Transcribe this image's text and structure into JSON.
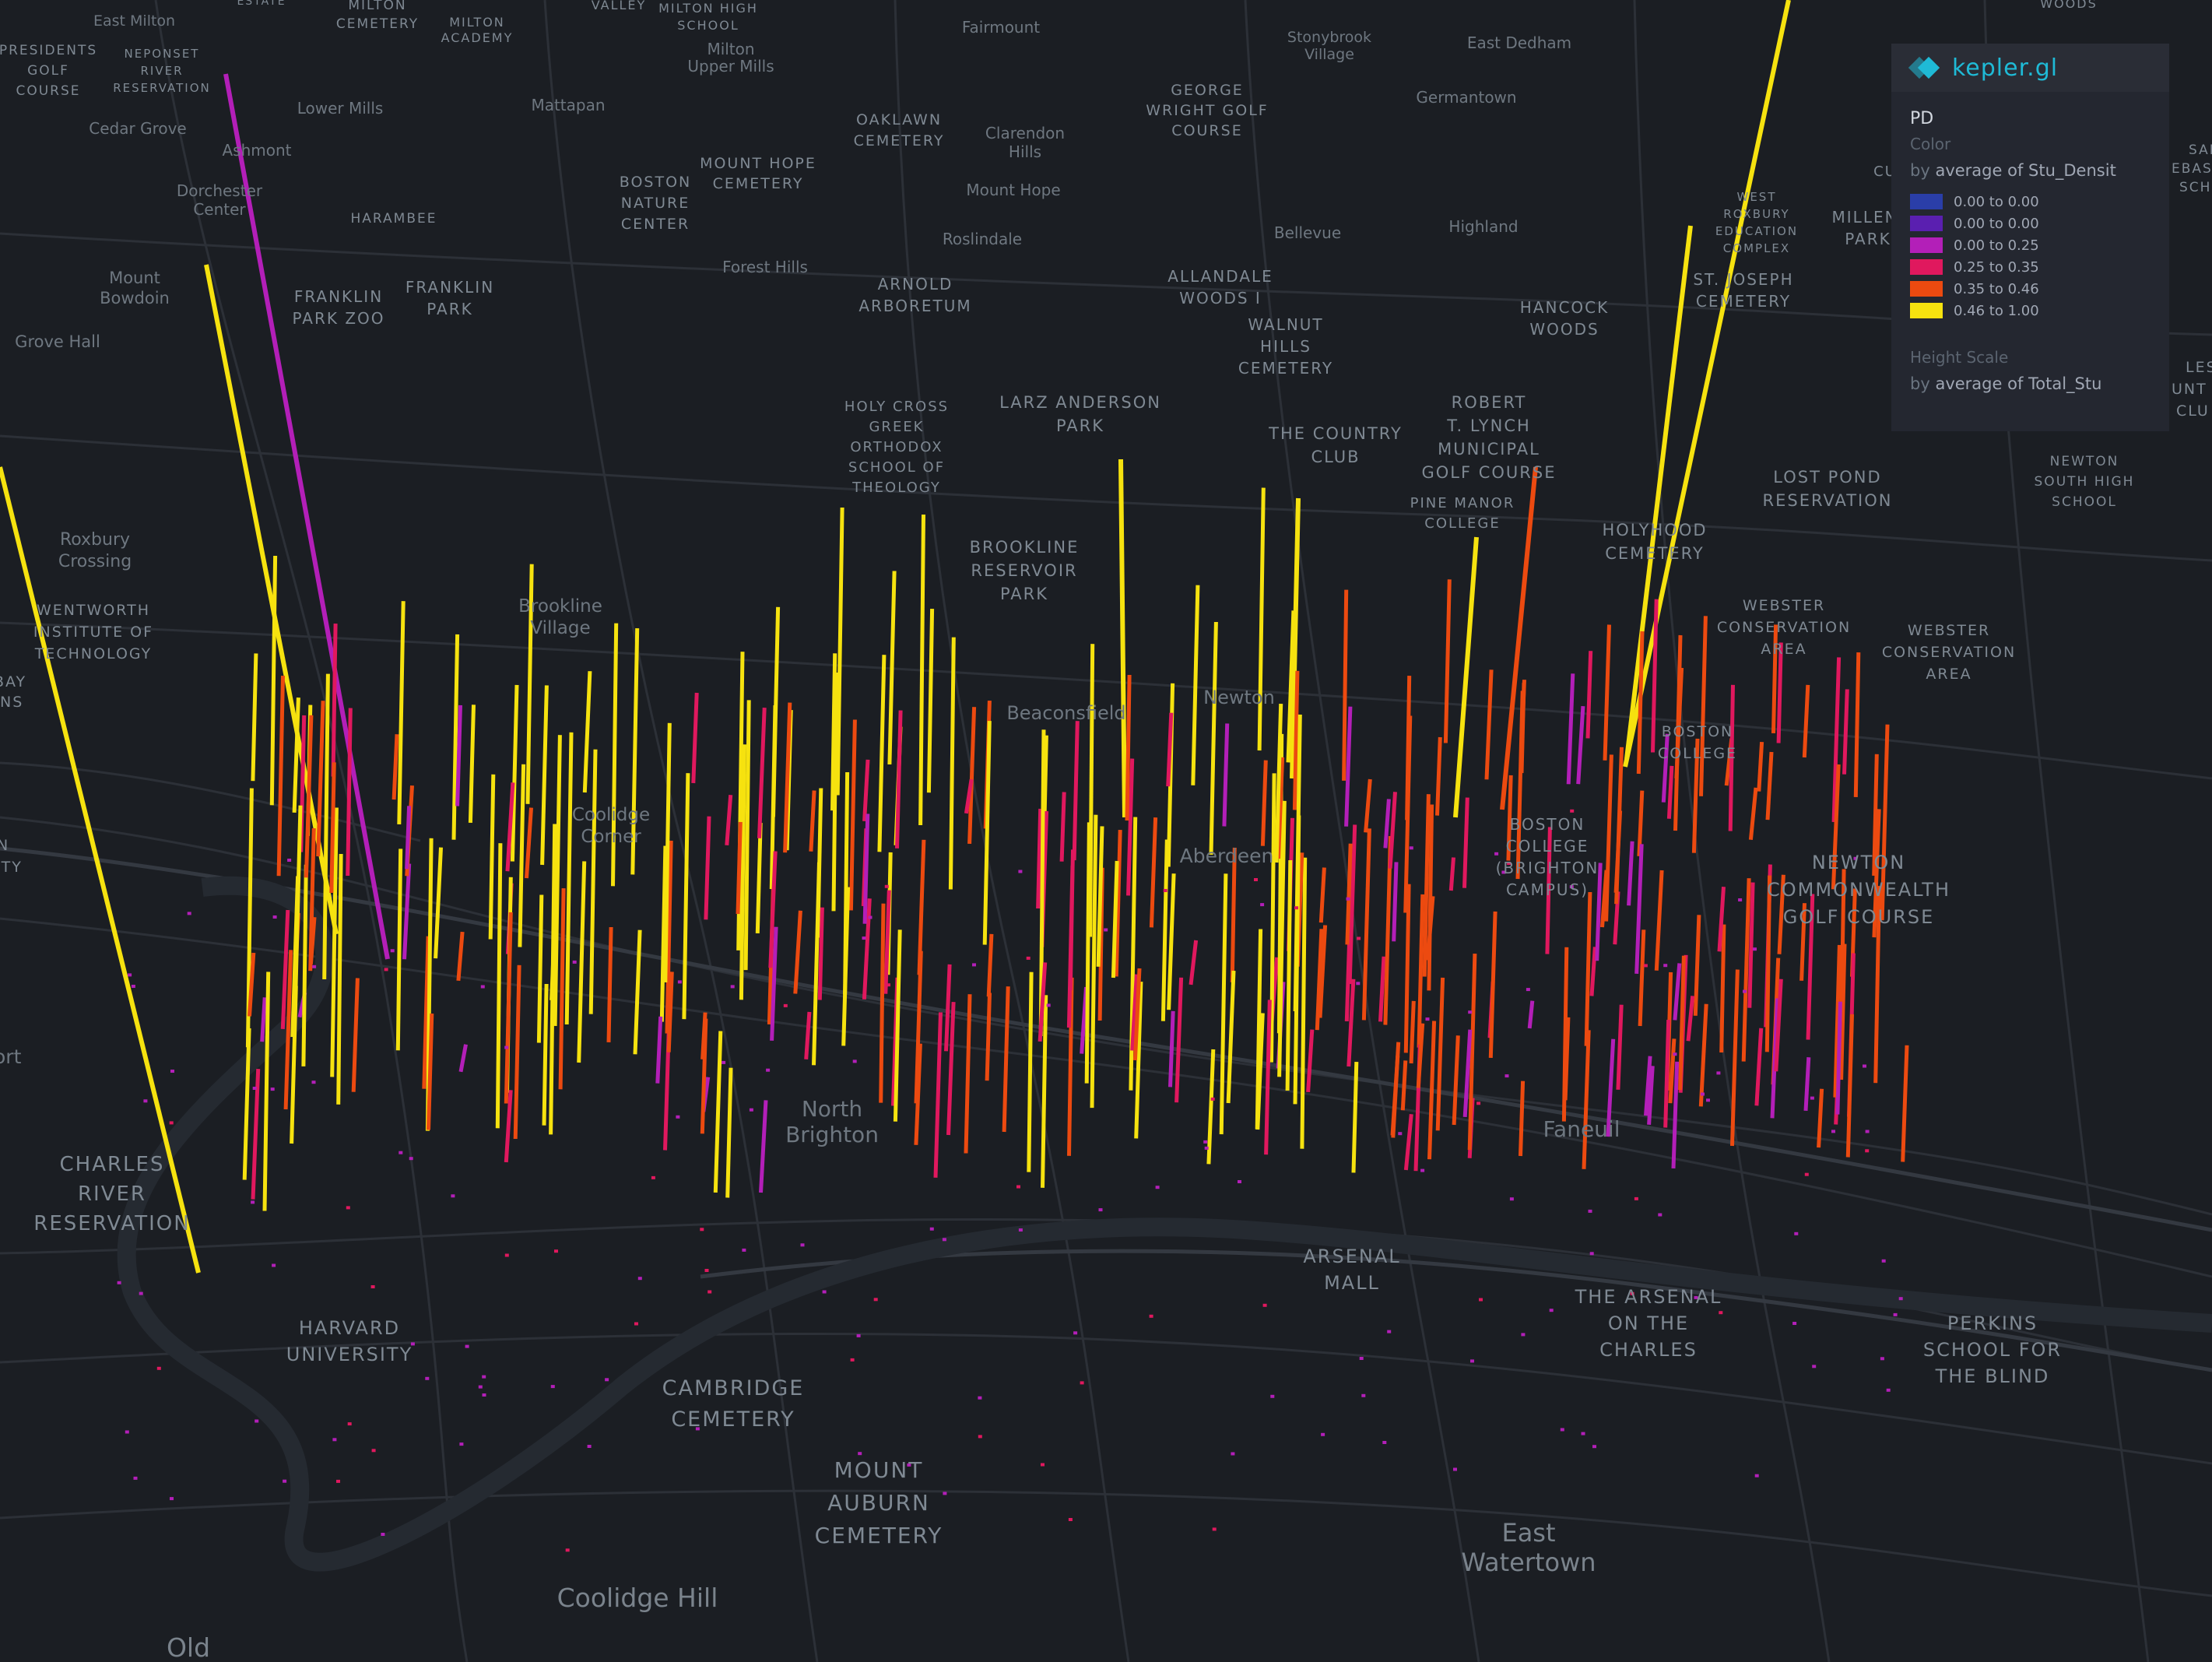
{
  "legend": {
    "brand": "kepler.gl",
    "layer_name": "PD",
    "color_title": "Color",
    "color_by_prefix": "by",
    "color_field": "average of Stu_Densit",
    "color_ramp": [
      {
        "label": "0.00 to 0.00",
        "color": "#2a3ea8"
      },
      {
        "label": "0.00 to 0.00",
        "color": "#5a1fb0"
      },
      {
        "label": "0.00 to 0.25",
        "color": "#b31fb8"
      },
      {
        "label": "0.25 to 0.35",
        "color": "#e0185e"
      },
      {
        "label": "0.35 to 0.46",
        "color": "#ec4a10"
      },
      {
        "label": "0.46 to 1.00",
        "color": "#f6e20f"
      }
    ],
    "height_title": "Height Scale",
    "height_by_prefix": "by",
    "height_field": "average of Total_Stu"
  },
  "map_labels": {
    "east_milton": "East Milton",
    "milton_cemetery_1": "MILTON",
    "milton_cemetery_2": "CEMETERY",
    "milton_academy_1": "MILTON",
    "milton_academy_2": "ACADEMY",
    "valley": "VALLEY",
    "milton_high_1": "MILTON HIGH",
    "milton_high_2": "SCHOOL",
    "milton_upper_1": "Milton",
    "milton_upper_2": "Upper Mills",
    "fairmount": "Fairmount",
    "stonybrook_1": "Stonybrook",
    "stonybrook_2": "Village",
    "east_dedham": "East Dedham",
    "germantown": "Germantown",
    "woods": "WOODS",
    "presidents_1": "PRESIDENTS",
    "presidents_2": "GOLF",
    "presidents_3": "COURSE",
    "neponset_1": "NEPONSET",
    "neponset_2": "RIVER",
    "neponset_3": "RESERVATION",
    "lower_mills": "Lower Mills",
    "mattapan": "Mattapan",
    "cedar_grove": "Cedar Grove",
    "ashmont": "Ashmont",
    "dorchester_1": "Dorchester",
    "dorchester_2": "Center",
    "harambee": "HARAMBEE",
    "oaklawn_1": "OAKLAWN",
    "oaklawn_2": "CEMETERY",
    "clarendon_1": "Clarendon",
    "clarendon_2": "Hills",
    "george_1": "GEORGE",
    "george_2": "WRIGHT GOLF",
    "george_3": "COURSE",
    "mount_hope_cem_1": "MOUNT HOPE",
    "mount_hope_cem_2": "CEMETERY",
    "mount_hope": "Mount Hope",
    "boston_nature_1": "BOSTON",
    "boston_nature_2": "NATURE",
    "boston_nature_3": "CENTER",
    "roslindale": "Roslindale",
    "bellevue": "Bellevue",
    "highland": "Highland",
    "forest_hills": "Forest Hills",
    "mount_bowdoin_1": "Mount",
    "mount_bowdoin_2": "Bowdoin",
    "franklin_zoo_1": "FRANKLIN",
    "franklin_zoo_2": "PARK ZOO",
    "franklin_park_1": "FRANKLIN",
    "franklin_park_2": "PARK",
    "arnold_1": "ARNOLD",
    "arnold_2": "ARBORETUM",
    "allandale_1": "ALLANDALE",
    "allandale_2": "WOODS I",
    "walnut_1": "WALNUT",
    "walnut_2": "HILLS",
    "walnut_3": "CEMETERY",
    "grove_hall": "Grove Hall",
    "hancock_1": "HANCOCK",
    "hancock_2": "WOODS",
    "west_roxbury_1": "WEST",
    "west_roxbury_2": "ROXBURY",
    "west_roxbury_3": "EDUCATION",
    "west_roxbury_4": "COMPLEX",
    "millennium_1": "MILLENI",
    "millennium_2": "PARK",
    "st_joseph_1": "ST. JOSEPH",
    "st_joseph_2": "CEMETERY",
    "holy_cross_1": "HOLY CROSS",
    "holy_cross_2": "GREEK",
    "holy_cross_3": "ORTHODOX",
    "holy_cross_4": "SCHOOL OF",
    "holy_cross_5": "THEOLOGY",
    "larz_1": "LARZ ANDERSON",
    "larz_2": "PARK",
    "country_club_1": "THE COUNTRY",
    "country_club_2": "CLUB",
    "robert_1": "ROBERT",
    "robert_2": "T. LYNCH",
    "robert_3": "MUNICIPAL",
    "robert_4": "GOLF COURSE",
    "pine_manor_1": "PINE MANOR",
    "pine_manor_2": "COLLEGE",
    "lost_pond_1": "LOST POND",
    "lost_pond_2": "RESERVATION",
    "newton_south_1": "NEWTON",
    "newton_south_2": "SOUTH HIGH",
    "newton_south_3": "SCHOOL",
    "roxbury_crossing_1": "Roxbury",
    "roxbury_crossing_2": "Crossing",
    "brookline_res_1": "BROOKLINE",
    "brookline_res_2": "RESERVOIR",
    "brookline_res_3": "PARK",
    "holyhood_1": "HOLYHOOD",
    "holyhood_2": "CEMETERY",
    "wentworth_1": "WENTWORTH",
    "wentworth_2": "INSTITUTE OF",
    "wentworth_3": "TECHNOLOGY",
    "brookline_village_1": "Brookline",
    "brookline_village_2": "Village",
    "webster_1a": "WEBSTER",
    "webster_1b": "CONSERVATION",
    "webster_1c": "AREA",
    "webster_2a": "WEBSTER",
    "webster_2b": "CONSERVATION",
    "webster_2c": "AREA",
    "beaconsfield": "Beaconsfield",
    "newton_centre": "Newton",
    "boston_college_1": "BOSTON",
    "boston_college_2": "COLLEGE",
    "coolidge_1": "Coolidge",
    "coolidge_2": "Corner",
    "aberdeen": "Aberdeen",
    "bc_brighton_1": "BOSTON",
    "bc_brighton_2": "COLLEGE",
    "bc_brighton_3": "(BRIGHTON",
    "bc_brighton_4": "CAMPUS)",
    "newton_comm_1": "NEWTON",
    "newton_comm_2": "COMMONWEALTH",
    "newton_comm_3": "GOLF COURSE",
    "bay_1": "BAY",
    "bay_2": "NS",
    "n_1": "N",
    "n_2": "ITY",
    "ort": "ort",
    "north_brighton_1": "North",
    "north_brighton_2": "Brighton",
    "faneuil": "Faneuil",
    "charles_1": "CHARLES",
    "charles_2": "RIVER",
    "charles_3": "RESERVATION",
    "arsenal_mall_1": "ARSENAL",
    "arsenal_mall_2": "MALL",
    "arsenal_charles_1": "THE ARSENAL",
    "arsenal_charles_2": "ON THE",
    "arsenal_charles_3": "CHARLES",
    "perkins_1": "PERKINS",
    "perkins_2": "SCHOOL FOR",
    "perkins_3": "THE BLIND",
    "harvard_1": "HARVARD",
    "harvard_2": "UNIVERSITY",
    "cambridge_1": "CAMBRIDGE",
    "cambridge_2": "CEMETERY",
    "mount_auburn_1": "MOUNT",
    "mount_auburn_2": "AUBURN",
    "mount_auburn_3": "CEMETERY",
    "east_watertown_1": "East",
    "east_watertown_2": "Watertown",
    "coolidge_hill": "Coolidge Hill",
    "old": "Old",
    "sai_1": "SAI",
    "sai_2": "EBAST",
    "sai_3": "SCHO",
    "les_1": "LES",
    "les_2": "UNT",
    "les_3": "CLU",
    "cu_1": "CU",
    "estate": "ESTATE"
  }
}
